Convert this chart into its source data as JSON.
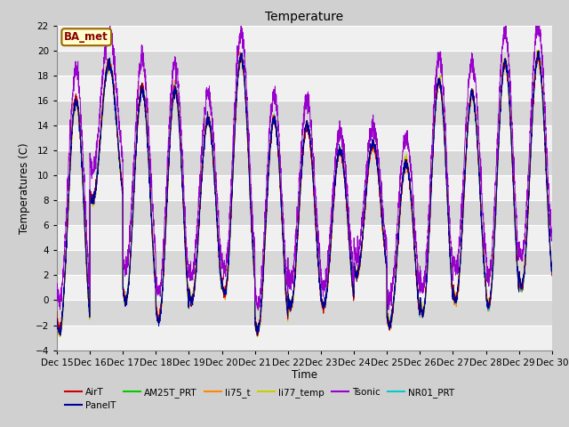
{
  "title": "Temperature",
  "ylabel": "Temperatures (C)",
  "xlabel": "Time",
  "ylim": [
    -4,
    22
  ],
  "yticks": [
    -4,
    -2,
    0,
    2,
    4,
    6,
    8,
    10,
    12,
    14,
    16,
    18,
    20,
    22
  ],
  "x_start_day": 15,
  "x_end_day": 30,
  "xtick_days": [
    15,
    16,
    17,
    18,
    19,
    20,
    21,
    22,
    23,
    24,
    25,
    26,
    27,
    28,
    29,
    30
  ],
  "series_colors": {
    "AirT": "#cc0000",
    "PanelT": "#000099",
    "AM25T_PRT": "#00cc00",
    "li75_t": "#ff8800",
    "li77_temp": "#cccc00",
    "Tsonic": "#9900cc",
    "NR01_PRT": "#00cccc"
  },
  "annotation_text": "BA_met",
  "annotation_facecolor": "#ffffcc",
  "annotation_edgecolor": "#996600",
  "annotation_textcolor": "#880000",
  "bg_light": "#f0f0f0",
  "bg_dark": "#d8d8d8",
  "grid_color": "#cccccc",
  "fig_bg": "#d0d0d0",
  "n_points": 3600,
  "seed": 42,
  "legend_labels": [
    "AirT",
    "PanelT",
    "AM25T_PRT",
    "li75_t",
    "li77_temp",
    "Tsonic",
    "NR01_PRT"
  ]
}
